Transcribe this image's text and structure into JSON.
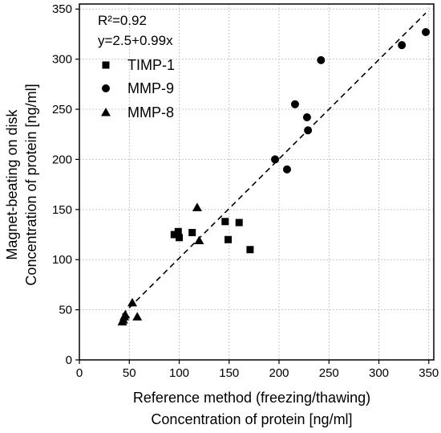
{
  "chart_data": {
    "type": "scatter",
    "xlabel": [
      "Reference method (freezing/thawing)",
      "Concentration of protein [ng/ml]"
    ],
    "ylabel": [
      "Magnet-beating on disk",
      "Concentration of protein [ng/ml]"
    ],
    "xlim": [
      0,
      355
    ],
    "ylim": [
      0,
      355
    ],
    "x_ticks": [
      0,
      50,
      100,
      150,
      200,
      250,
      300,
      350
    ],
    "y_ticks": [
      0,
      50,
      100,
      150,
      200,
      250,
      300,
      350
    ],
    "grid": true,
    "legend_position": "top-left",
    "annotations": [
      "R²=0.92",
      "y=2.5+0.99x"
    ],
    "fit_line": {
      "intercept": 2.5,
      "slope": 0.99,
      "x_range": [
        43,
        347
      ],
      "style": "dashed"
    },
    "series": [
      {
        "name": "TIMP-1",
        "marker": "square",
        "points": [
          [
            95,
            125
          ],
          [
            99,
            128
          ],
          [
            100,
            122
          ],
          [
            113,
            127
          ],
          [
            146,
            138
          ],
          [
            149,
            120
          ],
          [
            160,
            137
          ],
          [
            171,
            110
          ]
        ]
      },
      {
        "name": "MMP-9",
        "marker": "circle",
        "points": [
          [
            196,
            200
          ],
          [
            208,
            190
          ],
          [
            216,
            255
          ],
          [
            228,
            242
          ],
          [
            229,
            229
          ],
          [
            242,
            299
          ],
          [
            323,
            314
          ],
          [
            347,
            327
          ]
        ]
      },
      {
        "name": "MMP-8",
        "marker": "triangle",
        "points": [
          [
            43,
            38
          ],
          [
            44,
            40
          ],
          [
            45,
            43
          ],
          [
            46,
            45
          ],
          [
            53,
            57
          ],
          [
            58,
            43
          ],
          [
            118,
            152
          ],
          [
            120,
            119
          ]
        ]
      }
    ]
  }
}
